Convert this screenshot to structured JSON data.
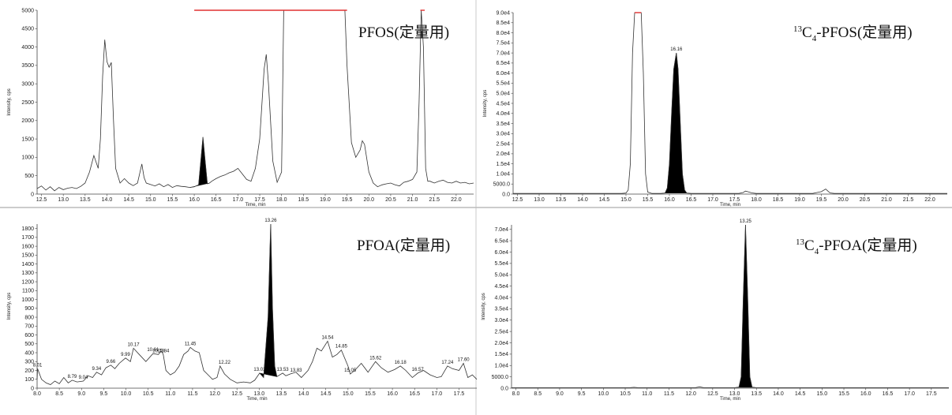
{
  "colors": {
    "trace": "#333333",
    "peak_fill": "#000000",
    "saturation": "#e03030",
    "divider": "#999999"
  },
  "chart_data": [
    {
      "type": "line",
      "title": "PFOS(定量用)",
      "title_main": "PFOS",
      "title_suffix": "(定量用)",
      "xlabel": "Time, min",
      "ylabel": "Intensity, cps",
      "xlim": [
        12.4,
        22.4
      ],
      "ylim": [
        0,
        5000
      ],
      "x_ticks": [
        "12.5",
        "13.0",
        "13.5",
        "14.0",
        "14.5",
        "15.0",
        "15.5",
        "16.0",
        "16.5",
        "17.0",
        "17.5",
        "18.0",
        "18.5",
        "19.0",
        "19.5",
        "20.0",
        "20.5",
        "21.0",
        "21.5",
        "22.0"
      ],
      "y_ticks": [
        "0",
        "500",
        "1000",
        "1500",
        "2000",
        "2500",
        "3000",
        "3500",
        "4000",
        "4500",
        "5000"
      ],
      "saturation_color": "#e03030",
      "saturated_segments": [
        [
          16.0,
          19.5
        ],
        [
          21.18,
          21.28
        ]
      ],
      "series": [
        {
          "x": [
            12.4,
            12.5,
            12.6,
            12.7,
            12.8,
            12.9,
            13.0,
            13.1,
            13.2,
            13.3,
            13.4,
            13.5,
            13.6,
            13.7,
            13.8,
            13.85,
            13.9,
            13.95,
            14.0,
            14.05,
            14.1,
            14.15,
            14.2,
            14.3,
            14.4,
            14.5,
            14.6,
            14.7,
            14.8,
            14.85,
            14.9,
            15.0,
            15.1,
            15.2,
            15.3,
            15.4,
            15.5,
            15.6,
            15.7,
            15.8,
            15.9,
            16.0,
            16.1,
            16.2,
            16.25,
            16.3,
            16.35,
            16.4,
            16.5,
            16.6,
            16.7,
            16.8,
            16.9,
            17.0,
            17.1,
            17.2,
            17.3,
            17.4,
            17.5,
            17.6,
            17.65,
            17.7,
            17.8,
            17.9,
            18.0,
            18.05,
            19.45,
            19.5,
            19.6,
            19.7,
            19.8,
            19.85,
            19.9,
            20.0,
            20.1,
            20.2,
            20.3,
            20.4,
            20.5,
            20.6,
            20.7,
            20.8,
            20.9,
            21.0,
            21.1,
            21.15,
            21.2,
            21.25,
            21.3,
            21.35,
            21.4,
            21.5,
            21.6,
            21.7,
            21.8,
            21.9,
            22.0,
            22.1,
            22.2,
            22.3,
            22.4
          ],
          "y": [
            150,
            220,
            110,
            200,
            90,
            180,
            120,
            160,
            180,
            150,
            210,
            300,
            600,
            1050,
            700,
            1500,
            3200,
            4200,
            3600,
            3450,
            3580,
            2000,
            700,
            300,
            420,
            300,
            230,
            300,
            820,
            450,
            300,
            260,
            220,
            280,
            200,
            260,
            180,
            230,
            210,
            200,
            180,
            200,
            250,
            1550,
            900,
            280,
            300,
            350,
            420,
            480,
            520,
            580,
            620,
            700,
            550,
            400,
            350,
            700,
            1500,
            3400,
            3800,
            3000,
            900,
            320,
            600,
            5000,
            5000,
            3500,
            1400,
            1000,
            1200,
            1450,
            1350,
            600,
            300,
            200,
            250,
            280,
            300,
            250,
            220,
            320,
            350,
            400,
            600,
            2500,
            5000,
            4000,
            700,
            350,
            350,
            300,
            350,
            380,
            320,
            300,
            350,
            300,
            320,
            280,
            300
          ]
        }
      ],
      "filled_peak": {
        "rt": 16.2,
        "x_range": [
          15.9,
          16.35
        ]
      }
    },
    {
      "type": "line",
      "title": "13C4-PFOS(定量用)",
      "title_sup": "13",
      "title_c": "C",
      "title_sub": "4",
      "title_main": "-PFOS",
      "title_suffix": "(定量用)",
      "xlabel": "Time, min",
      "ylabel": "Intensity, cps",
      "xlim": [
        12.4,
        22.4
      ],
      "ylim": [
        0,
        90000
      ],
      "x_ticks": [
        "12.5",
        "13.0",
        "13.5",
        "14.0",
        "14.5",
        "15.0",
        "15.5",
        "16.0",
        "16.5",
        "17.0",
        "17.5",
        "18.0",
        "18.5",
        "19.0",
        "19.5",
        "20.0",
        "20.5",
        "21.0",
        "21.5",
        "22.0"
      ],
      "y_ticks": [
        "0.0",
        "5000.0",
        "1.0e4",
        "1.5e4",
        "2.0e4",
        "2.5e4",
        "3.0e4",
        "3.5e4",
        "4.0e4",
        "4.5e4",
        "5.0e4",
        "5.5e4",
        "6.0e4",
        "6.5e4",
        "7.0e4",
        "7.5e4",
        "8.0e4",
        "8.5e4",
        "9.0e4"
      ],
      "saturation_color": "#e03030",
      "saturated_segments": [
        [
          15.2,
          15.35
        ]
      ],
      "series": [
        {
          "x": [
            12.4,
            14.9,
            15.0,
            15.05,
            15.1,
            15.15,
            15.2,
            15.35,
            15.4,
            15.45,
            15.5,
            15.6,
            15.8,
            15.9,
            15.95,
            16.0,
            16.05,
            16.1,
            16.16,
            16.2,
            16.25,
            16.3,
            16.35,
            16.4,
            16.5,
            17.6,
            17.7,
            17.75,
            17.8,
            17.9,
            18.0,
            19.3,
            19.4,
            19.5,
            19.6,
            19.65,
            19.7,
            19.8,
            22.4
          ],
          "y": [
            300,
            300,
            500,
            2000,
            15000,
            70000,
            90000,
            90000,
            60000,
            10000,
            1000,
            300,
            300,
            500,
            3000,
            15000,
            40000,
            62000,
            70000,
            62000,
            35000,
            10000,
            2000,
            500,
            300,
            300,
            800,
            1500,
            1200,
            600,
            300,
            300,
            800,
            1200,
            2500,
            1500,
            600,
            300,
            300
          ]
        }
      ],
      "filled_peak": {
        "rt": 16.16,
        "x_range": [
          15.9,
          16.4
        ]
      },
      "peak_labels": [
        {
          "x": 16.16,
          "y": 70000,
          "text": "16.16"
        }
      ]
    },
    {
      "type": "line",
      "title": "PFOA(定量用)",
      "title_main": "PFOA",
      "title_suffix": "(定量用)",
      "xlabel": "Time, min",
      "ylabel": "Intensity, cps",
      "xlim": [
        8.0,
        17.9
      ],
      "ylim": [
        0,
        1850
      ],
      "x_ticks": [
        "8.0",
        "8.5",
        "9.0",
        "9.5",
        "10.0",
        "10.5",
        "11.0",
        "11.5",
        "12.0",
        "12.5",
        "13.0",
        "13.5",
        "14.0",
        "14.5",
        "15.0",
        "15.5",
        "16.0",
        "16.5",
        "17.0",
        "17.5"
      ],
      "y_ticks": [
        "0",
        "100",
        "200",
        "300",
        "400",
        "500",
        "600",
        "700",
        "800",
        "900",
        "1000",
        "1100",
        "1200",
        "1300",
        "1400",
        "1500",
        "1600",
        "1700",
        "1800"
      ],
      "series": [
        {
          "x": [
            8.0,
            8.01,
            8.1,
            8.2,
            8.3,
            8.4,
            8.5,
            8.6,
            8.7,
            8.79,
            8.9,
            9.04,
            9.15,
            9.25,
            9.34,
            9.45,
            9.55,
            9.66,
            9.75,
            9.85,
            9.99,
            10.1,
            10.17,
            10.3,
            10.45,
            10.61,
            10.73,
            10.8,
            10.84,
            10.9,
            11.0,
            11.1,
            11.2,
            11.3,
            11.4,
            11.45,
            11.55,
            11.65,
            11.75,
            11.85,
            11.95,
            12.05,
            12.12,
            12.22,
            12.35,
            12.5,
            12.65,
            12.8,
            12.9,
            13.01,
            13.1,
            13.2,
            13.26,
            13.3,
            13.35,
            13.4,
            13.53,
            13.6,
            13.7,
            13.83,
            13.95,
            14.1,
            14.2,
            14.3,
            14.4,
            14.54,
            14.65,
            14.75,
            14.85,
            15.0,
            15.05,
            15.15,
            15.3,
            15.45,
            15.62,
            15.75,
            15.9,
            16.05,
            16.18,
            16.3,
            16.45,
            16.57,
            16.7,
            16.85,
            17.0,
            17.1,
            17.24,
            17.35,
            17.5,
            17.6,
            17.7,
            17.8,
            17.9
          ],
          "y": [
            100,
            220,
            100,
            60,
            40,
            80,
            50,
            120,
            60,
            90,
            70,
            80,
            140,
            120,
            180,
            150,
            230,
            260,
            220,
            280,
            340,
            300,
            450,
            380,
            300,
            390,
            380,
            420,
            380,
            200,
            150,
            180,
            250,
            380,
            420,
            460,
            420,
            400,
            200,
            150,
            100,
            120,
            250,
            160,
            100,
            60,
            70,
            60,
            90,
            170,
            120,
            800,
            1850,
            900,
            250,
            130,
            170,
            140,
            160,
            180,
            120,
            200,
            300,
            450,
            420,
            530,
            350,
            380,
            430,
            250,
            160,
            200,
            280,
            180,
            300,
            230,
            180,
            210,
            250,
            200,
            120,
            170,
            200,
            150,
            120,
            130,
            250,
            220,
            200,
            280,
            120,
            150,
            100
          ]
        }
      ],
      "filled_peak": {
        "rt": 13.26,
        "x_range": [
          13.01,
          13.4
        ]
      },
      "peak_labels": [
        {
          "x": 8.01,
          "y": 220,
          "text": "8.01"
        },
        {
          "x": 8.79,
          "y": 90,
          "text": "8.79"
        },
        {
          "x": 9.04,
          "y": 80,
          "text": "9.04"
        },
        {
          "x": 9.34,
          "y": 180,
          "text": "9.34"
        },
        {
          "x": 9.66,
          "y": 260,
          "text": "9.66"
        },
        {
          "x": 9.99,
          "y": 340,
          "text": "9.99"
        },
        {
          "x": 10.17,
          "y": 450,
          "text": "10.17"
        },
        {
          "x": 10.61,
          "y": 390,
          "text": "10.61"
        },
        {
          "x": 10.73,
          "y": 380,
          "text": "10.73"
        },
        {
          "x": 10.84,
          "y": 380,
          "text": "10.84"
        },
        {
          "x": 11.45,
          "y": 460,
          "text": "11.45"
        },
        {
          "x": 12.22,
          "y": 250,
          "text": "12.22"
        },
        {
          "x": 13.01,
          "y": 170,
          "text": "13.01"
        },
        {
          "x": 13.26,
          "y": 1850,
          "text": "13.26"
        },
        {
          "x": 13.53,
          "y": 170,
          "text": "13.53"
        },
        {
          "x": 13.83,
          "y": 160,
          "text": "13.83"
        },
        {
          "x": 14.54,
          "y": 530,
          "text": "14.54"
        },
        {
          "x": 14.85,
          "y": 430,
          "text": "14.85"
        },
        {
          "x": 15.05,
          "y": 160,
          "text": "15.05"
        },
        {
          "x": 15.62,
          "y": 300,
          "text": "15.62"
        },
        {
          "x": 16.18,
          "y": 250,
          "text": "16.18"
        },
        {
          "x": 16.57,
          "y": 170,
          "text": "16.57"
        },
        {
          "x": 17.24,
          "y": 250,
          "text": "17.24"
        },
        {
          "x": 17.6,
          "y": 280,
          "text": "17.60"
        }
      ]
    },
    {
      "type": "line",
      "title": "13C4-PFOA(定量用)",
      "title_sup": "13",
      "title_c": "C",
      "title_sub": "4",
      "title_main": "-PFOA",
      "title_suffix": "(定量用)",
      "xlabel": "Time, min",
      "ylabel": "Intensity, cps",
      "xlim": [
        7.9,
        17.9
      ],
      "ylim": [
        0,
        72000
      ],
      "x_ticks": [
        "8.0",
        "8.5",
        "9.0",
        "9.5",
        "10.0",
        "10.5",
        "11.0",
        "11.5",
        "12.0",
        "12.5",
        "13.0",
        "13.5",
        "14.0",
        "14.5",
        "15.0",
        "15.5",
        "16.0",
        "16.5",
        "17.0",
        "17.5"
      ],
      "y_ticks": [
        "0.0",
        "5000.0",
        "1.0e4",
        "1.5e4",
        "2.0e4",
        "2.5e4",
        "3.0e4",
        "3.5e4",
        "4.0e4",
        "4.5e4",
        "5.0e4",
        "5.5e4",
        "6.0e4",
        "6.5e4",
        "7.0e4"
      ],
      "series": [
        {
          "x": [
            7.9,
            10.6,
            10.7,
            10.8,
            12.1,
            12.2,
            12.3,
            13.0,
            13.1,
            13.15,
            13.2,
            13.25,
            13.3,
            13.35,
            13.4,
            13.5,
            17.9
          ],
          "y": [
            200,
            200,
            400,
            200,
            200,
            600,
            200,
            200,
            500,
            5000,
            40000,
            72000,
            40000,
            5000,
            500,
            200,
            200
          ]
        }
      ],
      "filled_peak": {
        "rt": 13.25,
        "x_range": [
          13.05,
          13.45
        ]
      },
      "peak_labels": [
        {
          "x": 13.25,
          "y": 72000,
          "text": "13.25"
        }
      ]
    }
  ]
}
